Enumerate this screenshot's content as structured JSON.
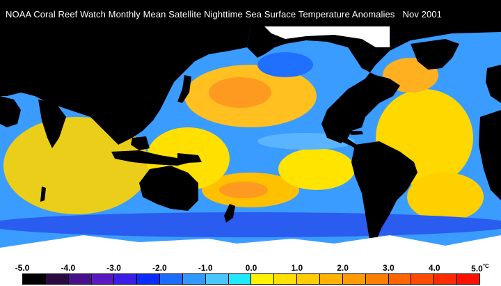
{
  "title": "NOAA Coral Reef Watch Monthly Mean Satellite Nighttime Sea Surface Temperature Anomalies",
  "date": "Nov 2001",
  "legend": {
    "ticks": [
      "-5.0",
      "-4.0",
      "-3.0",
      "-2.0",
      "-1.0",
      "0.0",
      "1.0",
      "2.0",
      "3.0",
      "4.0",
      "5.0"
    ],
    "unit": "°C",
    "min": -5.0,
    "max": 5.0,
    "colors": [
      "#000000",
      "#2a0a40",
      "#46108a",
      "#5a18c0",
      "#3a1ee6",
      "#0a2cff",
      "#1c6cff",
      "#2f99ff",
      "#49c6ff",
      "#22e8ff",
      "#fff200",
      "#ffe000",
      "#ffcc00",
      "#ffb300",
      "#ff9a00",
      "#ff8000",
      "#ff6600",
      "#ff4a00",
      "#ff2a00",
      "#ff1000"
    ]
  },
  "colors": {
    "land": "#000000",
    "ice": "#ffffff",
    "ocean_base": "#1e90ff",
    "warm": "#ffd200",
    "hot": "#ff9a20",
    "cool": "#3aa0ff",
    "cold": "#2040e0"
  }
}
